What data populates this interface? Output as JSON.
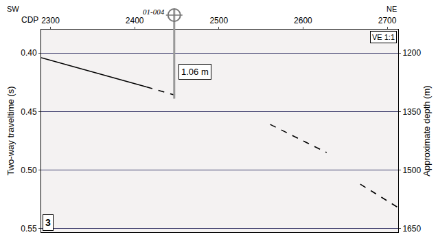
{
  "chart_data": {
    "type": "line",
    "x_label": "CDP",
    "y_label": "Two-way traveltime (s)",
    "y2_label": "Approximate depth (m)",
    "xlim": [
      2289,
      2713
    ],
    "xticks": [
      2300,
      2400,
      2500,
      2600,
      2700
    ],
    "ylim": [
      0.38,
      0.553
    ],
    "yticks": [
      {
        "value": 0.4,
        "label": "0.40"
      },
      0.45,
      {
        "value": 0.5,
        "label": "0.50"
      },
      0.55
    ],
    "y2lim": [
      1140,
      1659
    ],
    "y2ticks": [
      1200,
      1350,
      1500,
      1650
    ],
    "grid": true,
    "series": [
      {
        "color": "#000000",
        "line_style": "solid",
        "x": [
          2289,
          2414
        ],
        "values": [
          0.404,
          0.429
        ]
      },
      {
        "color": "#000000",
        "line_style": "dash",
        "x": [
          2414,
          2448
        ],
        "values": [
          0.429,
          0.436
        ]
      },
      {
        "color": "#000000",
        "line_style": "dash",
        "x": [
          2561,
          2628
        ],
        "values": [
          0.461,
          0.485
        ]
      },
      {
        "color": "#000000",
        "line_style": "dash",
        "x": [
          2668,
          2713
        ],
        "values": [
          0.512,
          0.532
        ]
      }
    ],
    "well": {
      "label": "01-004",
      "x": 2447,
      "bottom": 0.439
    },
    "annotations": [
      {
        "text": "1.06 m",
        "x": 2452,
        "y": 0.416
      }
    ],
    "corner_labels": {
      "left": "SW",
      "right": "NE",
      "top_right": "VE 1:1",
      "bottom_left": "3"
    }
  }
}
